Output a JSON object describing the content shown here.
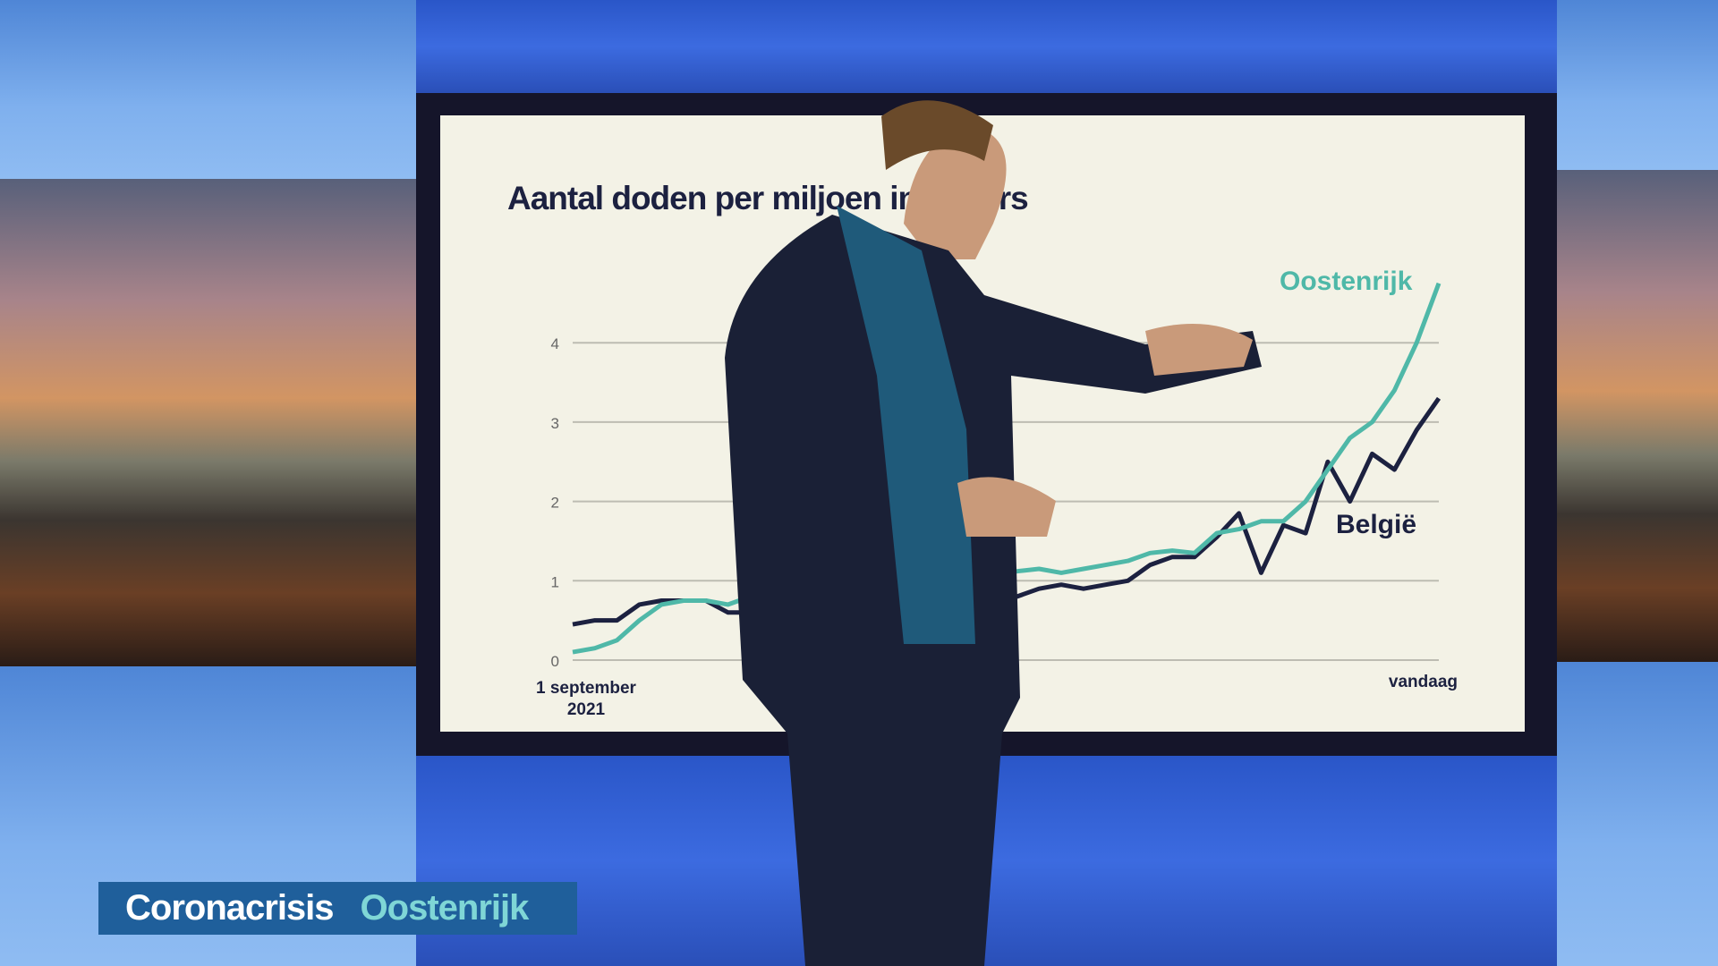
{
  "lower_third": {
    "topic": "Coronacrisis",
    "subtopic": "Oostenrijk"
  },
  "chart_data": {
    "type": "line",
    "title": "Aantal doden per miljoen inwoners",
    "x_labels": {
      "start": "1 september 2021",
      "end": "vandaag"
    },
    "ylim": [
      0,
      4.8
    ],
    "yticks": [
      "0",
      "1",
      "2",
      "3",
      "4"
    ],
    "grid": true,
    "series": [
      {
        "name": "Oostenrijk",
        "color": "#4fb8a8",
        "values": [
          0.1,
          0.15,
          0.25,
          0.5,
          0.7,
          0.75,
          0.75,
          0.7,
          0.8,
          0.85,
          0.87,
          0.9,
          0.92,
          0.95,
          0.97,
          1.0,
          1.02,
          1.05,
          1.08,
          1.1,
          1.12,
          1.15,
          1.1,
          1.15,
          1.2,
          1.25,
          1.35,
          1.38,
          1.35,
          1.6,
          1.65,
          1.75,
          1.75,
          2.0,
          2.4,
          2.8,
          3.0,
          3.4,
          4.0,
          4.75
        ]
      },
      {
        "name": "België",
        "color": "#1c2140",
        "values": [
          0.45,
          0.5,
          0.5,
          0.7,
          0.75,
          0.75,
          0.75,
          0.6,
          0.6,
          0.62,
          0.64,
          0.66,
          0.68,
          0.7,
          0.72,
          0.75,
          0.78,
          0.8,
          0.82,
          0.85,
          0.8,
          0.9,
          0.95,
          0.9,
          0.95,
          1.0,
          1.2,
          1.3,
          1.3,
          1.55,
          1.85,
          1.1,
          1.7,
          1.6,
          2.5,
          2.0,
          2.6,
          2.4,
          2.9,
          3.3
        ]
      }
    ]
  }
}
